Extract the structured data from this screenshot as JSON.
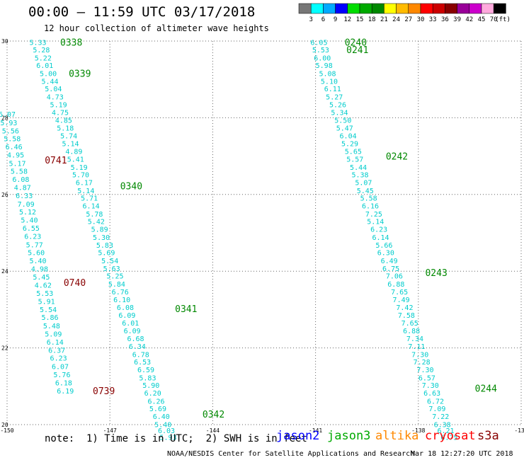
{
  "header": {
    "title": "00:00 – 11:59 UTC 03/17/2018",
    "subtitle": "12 hour collection of altimeter wave heights"
  },
  "colorbar": {
    "unit": "(ft)",
    "colors": [
      "#777777",
      "#00ffff",
      "#00aaff",
      "#0000ff",
      "#00dd00",
      "#00aa00",
      "#008800",
      "#ffff00",
      "#ffbb00",
      "#ff8800",
      "#ff0000",
      "#cc0000",
      "#880000",
      "#990099",
      "#cc00cc",
      "#ffaadd",
      "#000000"
    ],
    "ticks": [
      "3",
      "6",
      "9",
      "12",
      "15",
      "18",
      "21",
      "24",
      "27",
      "30",
      "33",
      "36",
      "39",
      "42",
      "45",
      "70"
    ]
  },
  "chart_data": {
    "type": "scatter",
    "title": "00:00 – 11:59 UTC 03/17/2018",
    "subtitle": "12 hour collection of altimeter wave heights",
    "xlim": [
      -150,
      -135
    ],
    "ylim": [
      20,
      30
    ],
    "x_ticks": [
      "-150",
      "-147",
      "-144",
      "-141",
      "-138",
      "-135"
    ],
    "y_ticks": [
      "20",
      "22",
      "24",
      "26",
      "28",
      "30"
    ],
    "grid": true,
    "series": [
      {
        "name": "jason3",
        "track": "A",
        "color": "#00cccc",
        "points": [
          {
            "lon": -149.1,
            "lat": 29.97,
            "v": "5.33"
          },
          {
            "lon": -149.0,
            "lat": 29.78,
            "v": "5.28"
          },
          {
            "lon": -148.95,
            "lat": 29.57,
            "v": "5.22"
          },
          {
            "lon": -148.9,
            "lat": 29.37,
            "v": "6.01"
          },
          {
            "lon": -148.8,
            "lat": 29.16,
            "v": "5.00"
          },
          {
            "lon": -148.75,
            "lat": 28.96,
            "v": "5.44"
          },
          {
            "lon": -148.65,
            "lat": 28.76,
            "v": "5.04"
          },
          {
            "lon": -148.6,
            "lat": 28.55,
            "v": "4.73"
          },
          {
            "lon": -148.5,
            "lat": 28.35,
            "v": "5.19"
          },
          {
            "lon": -148.45,
            "lat": 28.15,
            "v": "4.75"
          },
          {
            "lon": -148.35,
            "lat": 27.94,
            "v": "4.85"
          },
          {
            "lon": -148.3,
            "lat": 27.74,
            "v": "5.18"
          },
          {
            "lon": -148.2,
            "lat": 27.54,
            "v": "5.74"
          },
          {
            "lon": -148.15,
            "lat": 27.33,
            "v": "5.14"
          },
          {
            "lon": -148.05,
            "lat": 27.13,
            "v": "4.89"
          },
          {
            "lon": -148.0,
            "lat": 26.93,
            "v": "5.41"
          },
          {
            "lon": -147.9,
            "lat": 26.72,
            "v": "5.19"
          },
          {
            "lon": -147.85,
            "lat": 26.52,
            "v": "5.70"
          },
          {
            "lon": -147.75,
            "lat": 26.32,
            "v": "6.17"
          },
          {
            "lon": -147.7,
            "lat": 26.11,
            "v": "5.14"
          },
          {
            "lon": -147.6,
            "lat": 25.91,
            "v": "5.71"
          },
          {
            "lon": -147.55,
            "lat": 25.71,
            "v": "6.14"
          },
          {
            "lon": -147.45,
            "lat": 25.5,
            "v": "5.78"
          },
          {
            "lon": -147.4,
            "lat": 25.3,
            "v": "5.42"
          },
          {
            "lon": -147.3,
            "lat": 25.1,
            "v": "5.89"
          },
          {
            "lon": -147.25,
            "lat": 24.89,
            "v": "5.30"
          },
          {
            "lon": -147.15,
            "lat": 24.69,
            "v": "5.83"
          },
          {
            "lon": -147.1,
            "lat": 24.49,
            "v": "5.69"
          },
          {
            "lon": -147.0,
            "lat": 24.28,
            "v": "5.54"
          },
          {
            "lon": -146.95,
            "lat": 24.08,
            "v": "5.63"
          },
          {
            "lon": -146.85,
            "lat": 23.88,
            "v": "5.25"
          },
          {
            "lon": -146.8,
            "lat": 23.67,
            "v": "5.84"
          },
          {
            "lon": -146.7,
            "lat": 23.47,
            "v": "6.76"
          },
          {
            "lon": -146.65,
            "lat": 23.27,
            "v": "6.10"
          },
          {
            "lon": -146.55,
            "lat": 23.06,
            "v": "6.08"
          },
          {
            "lon": -146.5,
            "lat": 22.86,
            "v": "6.09"
          },
          {
            "lon": -146.4,
            "lat": 22.66,
            "v": "6.01"
          },
          {
            "lon": -146.35,
            "lat": 22.45,
            "v": "6.09"
          },
          {
            "lon": -146.25,
            "lat": 22.25,
            "v": "6.68"
          },
          {
            "lon": -146.2,
            "lat": 22.05,
            "v": "6.34"
          },
          {
            "lon": -146.1,
            "lat": 21.84,
            "v": "6.78"
          },
          {
            "lon": -146.05,
            "lat": 21.64,
            "v": "6.53"
          },
          {
            "lon": -145.95,
            "lat": 21.44,
            "v": "6.59"
          },
          {
            "lon": -145.9,
            "lat": 21.23,
            "v": "5.83"
          },
          {
            "lon": -145.8,
            "lat": 21.03,
            "v": "5.90"
          },
          {
            "lon": -145.75,
            "lat": 20.83,
            "v": "6.20"
          },
          {
            "lon": -145.65,
            "lat": 20.62,
            "v": "6.26"
          },
          {
            "lon": -145.6,
            "lat": 20.42,
            "v": "5.69"
          },
          {
            "lon": -145.5,
            "lat": 20.22,
            "v": "6.40"
          },
          {
            "lon": -145.45,
            "lat": 20.01,
            "v": "5.40"
          },
          {
            "lon": -145.35,
            "lat": 19.85,
            "v": "6.03"
          },
          {
            "lon": -145.3,
            "lat": 19.68,
            "v": "5.93"
          }
        ]
      },
      {
        "name": "jason3",
        "track": "B",
        "color": "#00cccc",
        "points": [
          {
            "lon": -140.9,
            "lat": 29.97,
            "v": "6.05"
          },
          {
            "lon": -140.85,
            "lat": 29.78,
            "v": "5.53"
          },
          {
            "lon": -140.8,
            "lat": 29.57,
            "v": "6.00"
          },
          {
            "lon": -140.75,
            "lat": 29.37,
            "v": "5.98"
          },
          {
            "lon": -140.65,
            "lat": 29.16,
            "v": "5.08"
          },
          {
            "lon": -140.6,
            "lat": 28.96,
            "v": "5.10"
          },
          {
            "lon": -140.5,
            "lat": 28.76,
            "v": "6.11"
          },
          {
            "lon": -140.45,
            "lat": 28.55,
            "v": "5.27"
          },
          {
            "lon": -140.35,
            "lat": 28.35,
            "v": "5.26"
          },
          {
            "lon": -140.3,
            "lat": 28.15,
            "v": "5.34"
          },
          {
            "lon": -140.2,
            "lat": 27.94,
            "v": "5.50"
          },
          {
            "lon": -140.15,
            "lat": 27.74,
            "v": "5.47"
          },
          {
            "lon": -140.05,
            "lat": 27.54,
            "v": "6.04"
          },
          {
            "lon": -140.0,
            "lat": 27.33,
            "v": "5.29"
          },
          {
            "lon": -139.9,
            "lat": 27.13,
            "v": "5.65"
          },
          {
            "lon": -139.85,
            "lat": 26.93,
            "v": "5.57"
          },
          {
            "lon": -139.75,
            "lat": 26.72,
            "v": "5.44"
          },
          {
            "lon": -139.7,
            "lat": 26.52,
            "v": "5.38"
          },
          {
            "lon": -139.6,
            "lat": 26.32,
            "v": "5.07"
          },
          {
            "lon": -139.55,
            "lat": 26.11,
            "v": "5.45"
          },
          {
            "lon": -139.45,
            "lat": 25.91,
            "v": "5.58"
          },
          {
            "lon": -139.4,
            "lat": 25.71,
            "v": "6.16"
          },
          {
            "lon": -139.3,
            "lat": 25.5,
            "v": "7.25"
          },
          {
            "lon": -139.25,
            "lat": 25.3,
            "v": "5.14"
          },
          {
            "lon": -139.15,
            "lat": 25.1,
            "v": "6.23"
          },
          {
            "lon": -139.1,
            "lat": 24.89,
            "v": "6.14"
          },
          {
            "lon": -139.0,
            "lat": 24.69,
            "v": "5.66"
          },
          {
            "lon": -138.95,
            "lat": 24.49,
            "v": "6.30"
          },
          {
            "lon": -138.85,
            "lat": 24.28,
            "v": "6.49"
          },
          {
            "lon": -138.8,
            "lat": 24.08,
            "v": "6.75"
          },
          {
            "lon": -138.7,
            "lat": 23.88,
            "v": "7.06"
          },
          {
            "lon": -138.65,
            "lat": 23.67,
            "v": "6.88"
          },
          {
            "lon": -138.55,
            "lat": 23.47,
            "v": "7.65"
          },
          {
            "lon": -138.5,
            "lat": 23.27,
            "v": "7.49"
          },
          {
            "lon": -138.4,
            "lat": 23.06,
            "v": "7.42"
          },
          {
            "lon": -138.35,
            "lat": 22.86,
            "v": "7.58"
          },
          {
            "lon": -138.25,
            "lat": 22.66,
            "v": "7.65"
          },
          {
            "lon": -138.2,
            "lat": 22.45,
            "v": "6.88"
          },
          {
            "lon": -138.1,
            "lat": 22.25,
            "v": "7.34"
          },
          {
            "lon": -138.05,
            "lat": 22.05,
            "v": "7.11"
          },
          {
            "lon": -137.95,
            "lat": 21.84,
            "v": "7.30"
          },
          {
            "lon": -137.9,
            "lat": 21.64,
            "v": "7.28"
          },
          {
            "lon": -137.8,
            "lat": 21.44,
            "v": "7.30"
          },
          {
            "lon": -137.75,
            "lat": 21.23,
            "v": "6.57"
          },
          {
            "lon": -137.65,
            "lat": 21.03,
            "v": "7.30"
          },
          {
            "lon": -137.6,
            "lat": 20.83,
            "v": "6.63"
          },
          {
            "lon": -137.5,
            "lat": 20.62,
            "v": "6.72"
          },
          {
            "lon": -137.45,
            "lat": 20.42,
            "v": "7.09"
          },
          {
            "lon": -137.35,
            "lat": 20.22,
            "v": "7.22"
          },
          {
            "lon": -137.3,
            "lat": 20.01,
            "v": "6.38"
          },
          {
            "lon": -137.2,
            "lat": 19.85,
            "v": "6.21"
          },
          {
            "lon": -137.1,
            "lat": 19.68,
            "v": "6.75"
          }
        ]
      },
      {
        "name": "cryosat",
        "track": "C",
        "color": "#00cccc",
        "points": [
          {
            "lon": -150.0,
            "lat": 28.1,
            "v": "6.07"
          },
          {
            "lon": -149.95,
            "lat": 27.88,
            "v": "5.93"
          },
          {
            "lon": -149.9,
            "lat": 27.67,
            "v": "5.56"
          },
          {
            "lon": -149.85,
            "lat": 27.46,
            "v": "5.58"
          },
          {
            "lon": -149.8,
            "lat": 27.25,
            "v": "6.46"
          },
          {
            "lon": -149.75,
            "lat": 27.04,
            "v": "4.95"
          },
          {
            "lon": -149.7,
            "lat": 26.82,
            "v": "5.17"
          },
          {
            "lon": -149.65,
            "lat": 26.61,
            "v": "5.58"
          },
          {
            "lon": -149.6,
            "lat": 26.4,
            "v": "6.08"
          },
          {
            "lon": -149.55,
            "lat": 26.19,
            "v": "4.87"
          },
          {
            "lon": -149.5,
            "lat": 25.98,
            "v": "6.33"
          },
          {
            "lon": -149.45,
            "lat": 25.76,
            "v": "7.09"
          },
          {
            "lon": -149.4,
            "lat": 25.55,
            "v": "5.12"
          },
          {
            "lon": -149.35,
            "lat": 25.34,
            "v": "5.40"
          },
          {
            "lon": -149.3,
            "lat": 25.13,
            "v": "6.55"
          },
          {
            "lon": -149.25,
            "lat": 24.92,
            "v": "6.23"
          },
          {
            "lon": -149.2,
            "lat": 24.7,
            "v": "5.77"
          },
          {
            "lon": -149.15,
            "lat": 24.49,
            "v": "5.60"
          },
          {
            "lon": -149.1,
            "lat": 24.28,
            "v": "5.40"
          },
          {
            "lon": -149.05,
            "lat": 24.07,
            "v": "4.98"
          },
          {
            "lon": -149.0,
            "lat": 23.86,
            "v": "5.45"
          },
          {
            "lon": -148.95,
            "lat": 23.64,
            "v": "4.62"
          },
          {
            "lon": -148.9,
            "lat": 23.43,
            "v": "5.53"
          },
          {
            "lon": -148.85,
            "lat": 23.22,
            "v": "5.91"
          },
          {
            "lon": -148.8,
            "lat": 23.01,
            "v": "5.54"
          },
          {
            "lon": -148.75,
            "lat": 22.8,
            "v": "5.86"
          },
          {
            "lon": -148.7,
            "lat": 22.58,
            "v": "5.48"
          },
          {
            "lon": -148.65,
            "lat": 22.37,
            "v": "5.09"
          },
          {
            "lon": -148.6,
            "lat": 22.16,
            "v": "6.14"
          },
          {
            "lon": -148.55,
            "lat": 21.95,
            "v": "6.37"
          },
          {
            "lon": -148.5,
            "lat": 21.74,
            "v": "6.23"
          },
          {
            "lon": -148.45,
            "lat": 21.52,
            "v": "6.07"
          },
          {
            "lon": -148.4,
            "lat": 21.31,
            "v": "5.76"
          },
          {
            "lon": -148.35,
            "lat": 21.1,
            "v": "6.18"
          },
          {
            "lon": -148.3,
            "lat": 20.89,
            "v": "6.19"
          }
        ]
      }
    ],
    "time_labels": [
      {
        "text": "0338",
        "lon": -148.45,
        "lat": 29.97,
        "color": "#008800"
      },
      {
        "text": "0339",
        "lon": -148.2,
        "lat": 29.16,
        "color": "#008800"
      },
      {
        "text": "0340",
        "lon": -146.7,
        "lat": 26.23,
        "color": "#008800"
      },
      {
        "text": "0341",
        "lon": -145.1,
        "lat": 23.03,
        "color": "#008800"
      },
      {
        "text": "0342",
        "lon": -144.3,
        "lat": 20.28,
        "color": "#008800"
      },
      {
        "text": "0240",
        "lon": -140.15,
        "lat": 29.97,
        "color": "#008800"
      },
      {
        "text": "0241",
        "lon": -140.1,
        "lat": 29.78,
        "color": "#008800"
      },
      {
        "text": "0242",
        "lon": -138.95,
        "lat": 27.0,
        "color": "#008800"
      },
      {
        "text": "0243",
        "lon": -137.8,
        "lat": 23.97,
        "color": "#008800"
      },
      {
        "text": "0244",
        "lon": -136.35,
        "lat": 20.95,
        "color": "#008800"
      },
      {
        "text": "0741",
        "lon": -148.9,
        "lat": 26.9,
        "color": "#880000"
      },
      {
        "text": "0740",
        "lon": -148.35,
        "lat": 23.71,
        "color": "#880000"
      },
      {
        "text": "0739",
        "lon": -147.5,
        "lat": 20.89,
        "color": "#880000"
      }
    ]
  },
  "footer": {
    "note": "note:  1) Time is in UTC;  2) SWH is in feet",
    "legend": [
      {
        "name": "jason2",
        "color": "#0000ff"
      },
      {
        "name": "jason3",
        "color": "#00aa00"
      },
      {
        "name": "altika",
        "color": "#ff8800"
      },
      {
        "name": "cryosat",
        "color": "#ff0000"
      },
      {
        "name": "s3a",
        "color": "#880000"
      }
    ],
    "credit": "NOAA/NESDIS Center for Satellite Applications and Research",
    "timestamp": "Mar 18 12:27:20 UTC 2018"
  }
}
